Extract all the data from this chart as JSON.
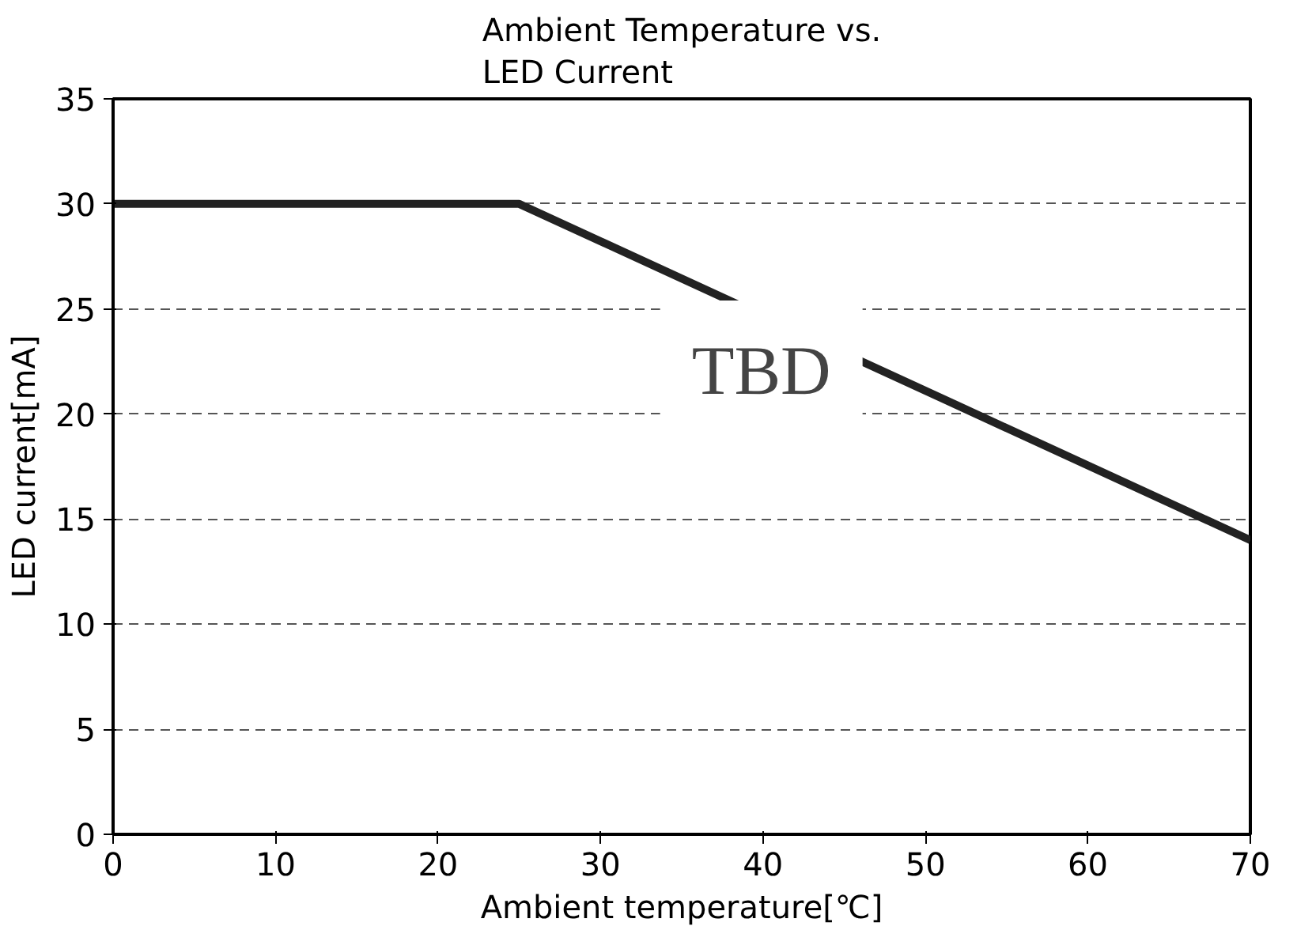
{
  "chart_data": {
    "type": "line",
    "title": "Ambient Temperature vs.\nLED Current",
    "xlabel": "Ambient temperature[℃]",
    "ylabel": "LED current[mA]",
    "x": [
      0,
      25,
      70
    ],
    "series": [
      {
        "color": "#222222",
        "values": [
          30,
          30,
          14
        ]
      }
    ],
    "xlim": [
      0,
      70
    ],
    "ylim": [
      0,
      35
    ],
    "xticks": [
      0,
      10,
      20,
      30,
      40,
      50,
      60,
      70
    ],
    "yticks": [
      0,
      5,
      10,
      15,
      20,
      25,
      30,
      35
    ],
    "grid": "y",
    "marker": "none",
    "line_style": "solid",
    "annotations": [
      "TBD"
    ]
  }
}
